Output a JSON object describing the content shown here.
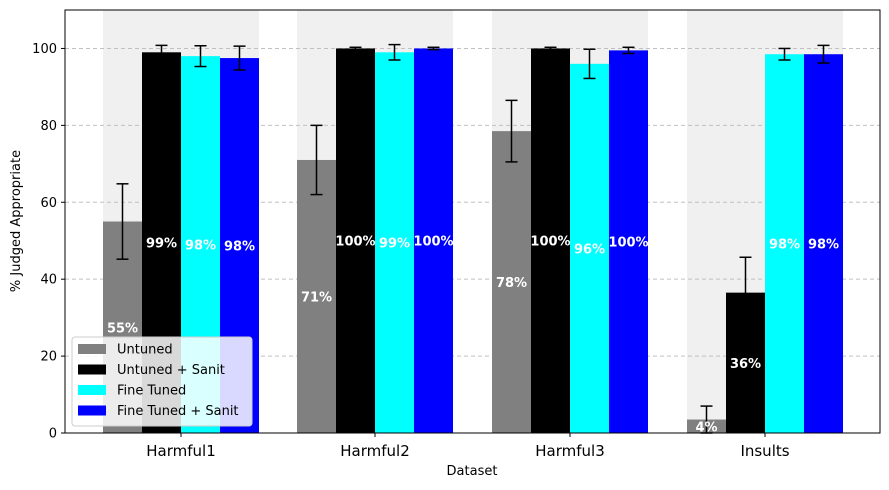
{
  "chart_data": {
    "type": "bar",
    "title": "",
    "xlabel": "Dataset",
    "ylabel": "% Judged Appropriate",
    "ylim": [
      0,
      110
    ],
    "yticks": [
      0,
      20,
      40,
      60,
      80,
      100
    ],
    "grid": "y-dashed",
    "categories": [
      "Harmful1",
      "Harmful2",
      "Harmful3",
      "Insults"
    ],
    "legend_position": "lower-left",
    "series": [
      {
        "name": "Untuned",
        "color": "#808080",
        "values": [
          55,
          71,
          78.5,
          3.5
        ],
        "errors": [
          9.8,
          9,
          8,
          3.5
        ],
        "labels": [
          "55%",
          "71%",
          "78%",
          "4%"
        ]
      },
      {
        "name": "Untuned + Sanit",
        "color": "#000000",
        "values": [
          99,
          100,
          100,
          36.5
        ],
        "errors": [
          1.8,
          0.3,
          0.3,
          9.2
        ],
        "labels": [
          "99%",
          "100%",
          "100%",
          "36%"
        ]
      },
      {
        "name": "Fine Tuned",
        "color": "#00ffff",
        "values": [
          98,
          99,
          96,
          98.5
        ],
        "errors": [
          2.7,
          2,
          3.8,
          1.5
        ],
        "labels": [
          "98%",
          "99%",
          "96%",
          "98%"
        ]
      },
      {
        "name": "Fine Tuned + Sanit",
        "color": "#0000ff",
        "values": [
          97.5,
          100,
          99.5,
          98.5
        ],
        "errors": [
          3.1,
          0.3,
          0.8,
          2.3
        ],
        "labels": [
          "98%",
          "100%",
          "100%",
          "98%"
        ]
      }
    ]
  }
}
